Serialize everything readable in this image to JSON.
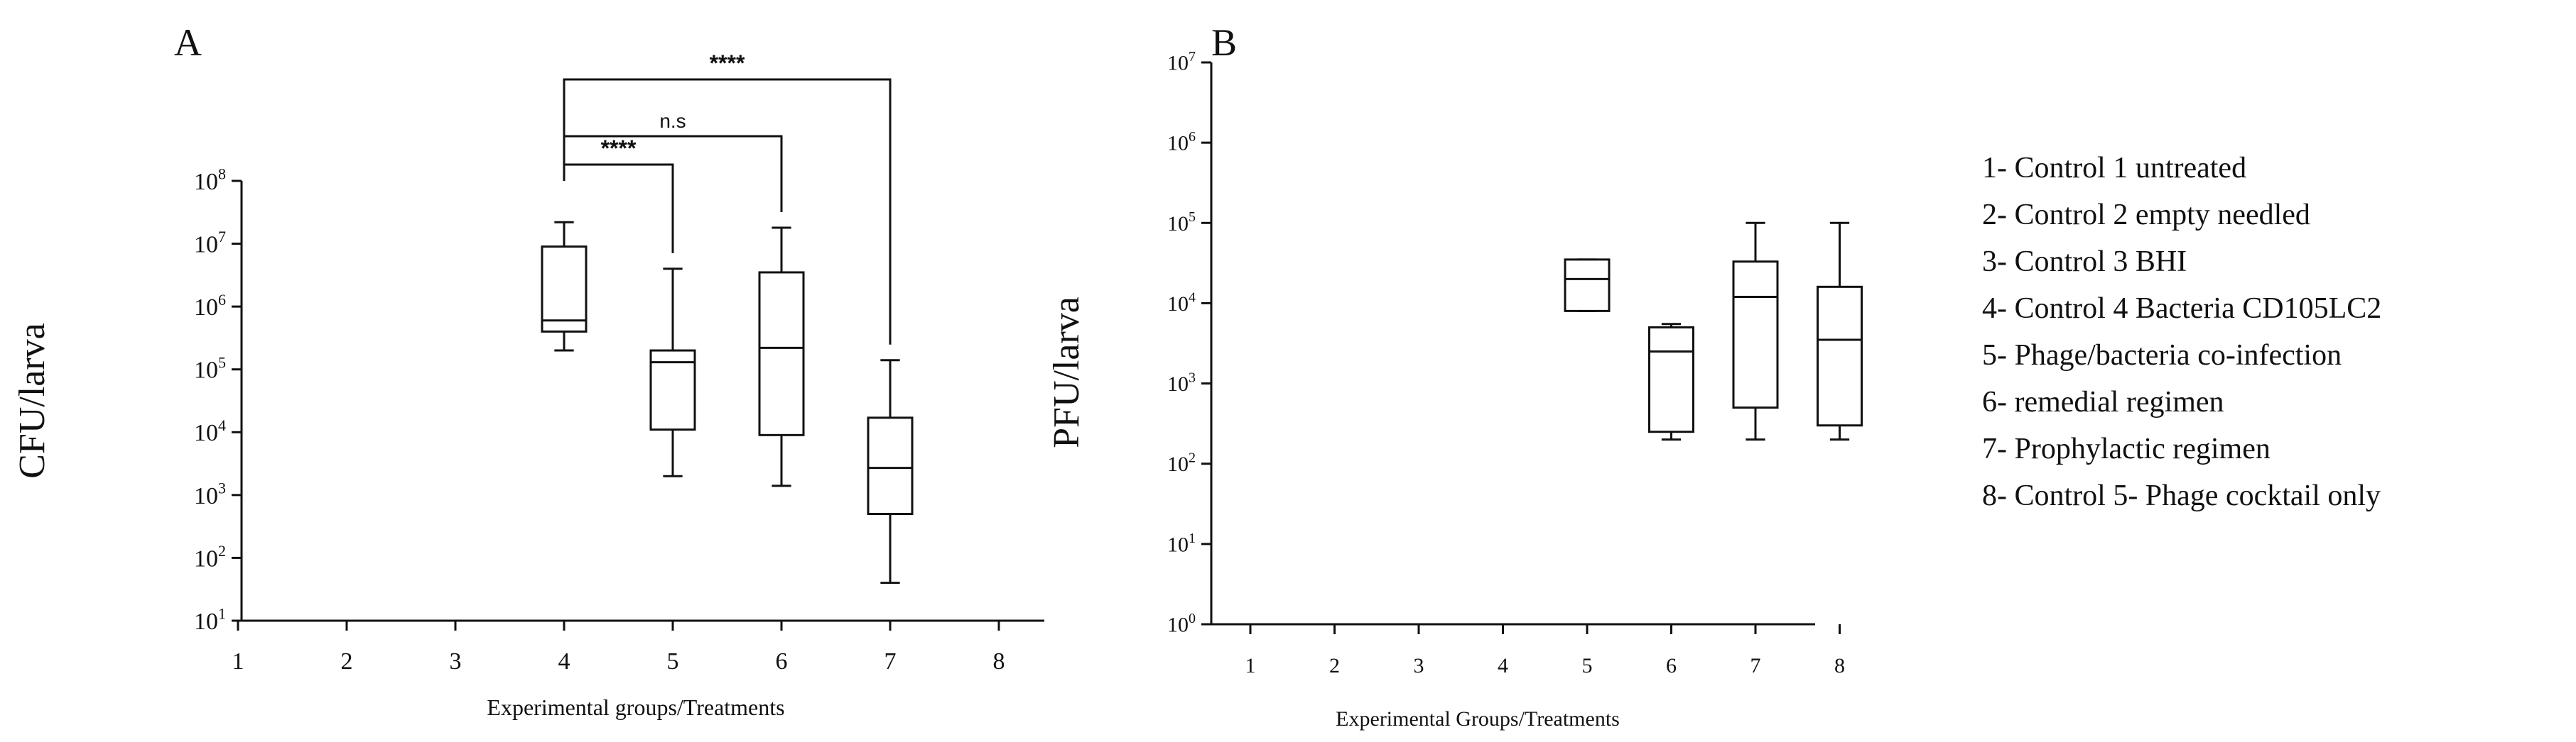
{
  "chart_data": [
    {
      "type": "box",
      "panel_label": "A",
      "xlabel": "Experimental groups/Treatments",
      "ylabel": "CFU/larva",
      "y_scale": "log",
      "ylim": [
        10,
        100000000
      ],
      "yticks": [
        {
          "value": 10,
          "base": "10",
          "exp": "1"
        },
        {
          "value": 100,
          "base": "10",
          "exp": "2"
        },
        {
          "value": 1000,
          "base": "10",
          "exp": "3"
        },
        {
          "value": 10000,
          "base": "10",
          "exp": "4"
        },
        {
          "value": 100000,
          "base": "10",
          "exp": "5"
        },
        {
          "value": 1000000,
          "base": "10",
          "exp": "6"
        },
        {
          "value": 10000000,
          "base": "10",
          "exp": "7"
        },
        {
          "value": 100000000,
          "base": "10",
          "exp": "8"
        }
      ],
      "categories": [
        "1",
        "2",
        "3",
        "4",
        "5",
        "6",
        "7",
        "8"
      ],
      "boxes": [
        {
          "group": "4",
          "min": 200000,
          "q1": 400000,
          "median": 600000,
          "q3": 9000000,
          "max": 22000000
        },
        {
          "group": "5",
          "min": 2000,
          "q1": 11000,
          "median": 130000,
          "q3": 200000,
          "max": 4000000
        },
        {
          "group": "6",
          "min": 1400,
          "q1": 9000,
          "median": 220000,
          "q3": 3500000,
          "max": 18000000
        },
        {
          "group": "7",
          "min": 40,
          "q1": 500,
          "median": 2700,
          "q3": 17000,
          "max": 140000
        }
      ],
      "significance": [
        {
          "from": "4",
          "to": "5",
          "label": "****"
        },
        {
          "from": "4",
          "to": "6",
          "label": "n.s"
        },
        {
          "from": "4",
          "to": "7",
          "label": "****"
        }
      ]
    },
    {
      "type": "box",
      "panel_label": "B",
      "xlabel": "Experimental Groups/Treatments",
      "ylabel": "PFU/larva",
      "y_scale": "log",
      "ylim": [
        1,
        10000000
      ],
      "yticks": [
        {
          "value": 1,
          "base": "10",
          "exp": "0"
        },
        {
          "value": 10,
          "base": "10",
          "exp": "1"
        },
        {
          "value": 100,
          "base": "10",
          "exp": "2"
        },
        {
          "value": 1000,
          "base": "10",
          "exp": "3"
        },
        {
          "value": 10000,
          "base": "10",
          "exp": "4"
        },
        {
          "value": 100000,
          "base": "10",
          "exp": "5"
        },
        {
          "value": 1000000,
          "base": "10",
          "exp": "6"
        },
        {
          "value": 10000000,
          "base": "10",
          "exp": "7"
        }
      ],
      "categories": [
        "1",
        "2",
        "3",
        "4",
        "5",
        "6",
        "7",
        "8"
      ],
      "boxes": [
        {
          "group": "5",
          "min": 8000,
          "q1": 8000,
          "median": 20000,
          "q3": 35000,
          "max": 35000
        },
        {
          "group": "6",
          "min": 200,
          "q1": 250,
          "median": 2500,
          "q3": 5000,
          "max": 5500
        },
        {
          "group": "7",
          "min": 200,
          "q1": 500,
          "median": 12000,
          "q3": 33000,
          "max": 100000
        },
        {
          "group": "8",
          "min": 200,
          "q1": 300,
          "median": 3500,
          "q3": 16000,
          "max": 100000
        }
      ]
    }
  ],
  "legend": [
    "1- Control 1 untreated",
    "2- Control 2 empty needled",
    "3- Control 3 BHI",
    "4- Control 4 Bacteria CD105LC2",
    "5- Phage/bacteria co-infection",
    "6- remedial regimen",
    "7- Prophylactic regimen",
    "8- Control 5- Phage cocktail only"
  ]
}
